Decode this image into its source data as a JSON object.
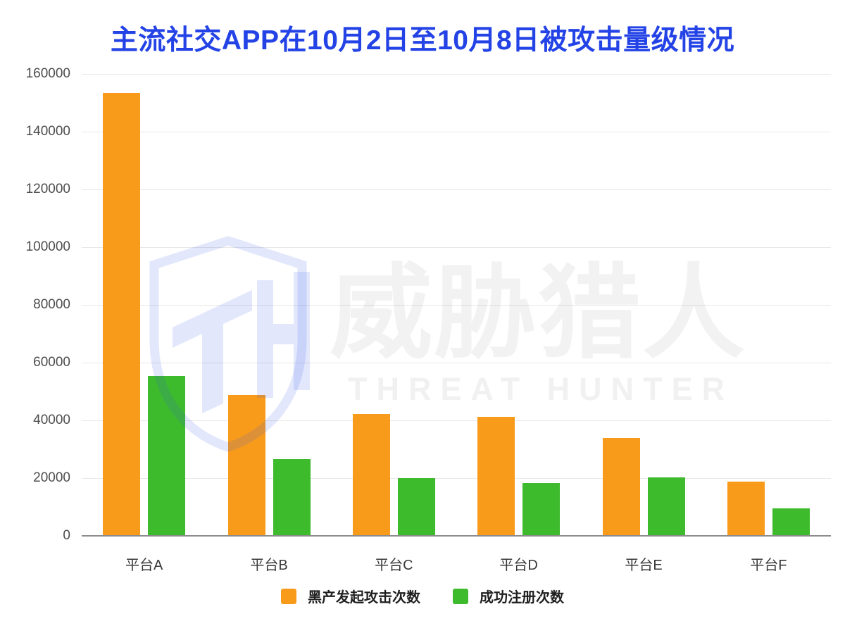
{
  "title": "主流社交APP在10月2日至10月8日被攻击量级情况",
  "colors": {
    "title": "#2443e6",
    "gridline": "#e8e8e8",
    "axis_line": "#8c8c8c",
    "y_label": "#4d4d4d",
    "x_label": "#383838",
    "attack_orange": "#f89b1b",
    "register_green": "#3ebb2d",
    "watermark_blue": "rgba(47,84,235,0.14)"
  },
  "chart_data": {
    "type": "bar",
    "categories": [
      "平台A",
      "平台B",
      "平台C",
      "平台D",
      "平台E",
      "平台F"
    ],
    "series": [
      {
        "key": "attack",
        "name": "黑产发起攻击次数",
        "color": "#f89b1b",
        "values": [
          153500,
          48800,
          42100,
          41200,
          34000,
          18800
        ]
      },
      {
        "key": "register",
        "name": "成功注册次数",
        "color": "#3ebb2d",
        "values": [
          55300,
          26500,
          20100,
          18300,
          20300,
          9600
        ]
      }
    ],
    "ylim": [
      0,
      160000
    ],
    "ytick_step": 20000,
    "ytick_labels": [
      "0",
      "20000",
      "40000",
      "60000",
      "80000",
      "100000",
      "120000",
      "140000",
      "160000"
    ],
    "grid": "horizontal",
    "legend_position": "bottom"
  },
  "watermark": {
    "monogram": "TH",
    "cjk": "威胁猎人",
    "latin": "THREAT HUNTER"
  }
}
